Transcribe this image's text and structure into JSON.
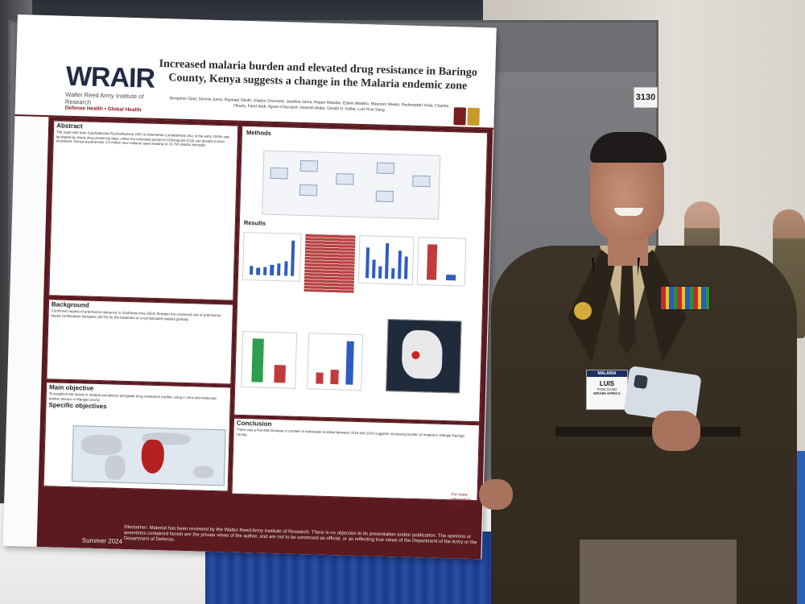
{
  "scene": {
    "booth_number": "3130"
  },
  "poster": {
    "logo": "WRAIR",
    "logo_sub": "Walter Reed Army Institute of Research",
    "logo_tag": "Defense Health  •  Global Health",
    "title": "Increased malaria burden and elevated drug resistance in Baringo County, Kenya suggests a change in the Malaria endemic zone",
    "authors": "Benjamin Opot, Dennis Juma, Raphael Okoth, Gladys Chemwor, Jackline Juma, Risper Maisiba, Edwin Mwakio, Maureen Mwalo, Redemptah Yeda, Charles Okudo, Farid Abdi, Agnes Cheruiyot, Hoseah Akala, Gerald G. Kellar, Luis Pow Sang",
    "sections": {
      "abstract": "Abstract",
      "background": "Background",
      "main_objective": "Main objective",
      "specific_objectives": "Specific objectives",
      "methods": "Methods",
      "results": "Results",
      "conclusion": "Conclusion"
    },
    "abstract_text": "The rapid shift from Sulphadoxine-Pyrimethamine (SP) to Artemether-Lumefantrine (AL) in the early 2000s was facilitated by timely drug sensitivity data, unlike the extended period of Chloroquine (CQ) use despite known resistance. Kenya experiences 3.5 million new malaria cases leading to 10,700 deaths annually.",
    "background_text": "Confirmed reports of artemisinin tolerance in Southeast Asia (SEA) threaten the continued use of artemisinin-based combination therapies (ACTs) for the treatment of uncomplicated malaria globally.",
    "objective_text": "To establish the trends in malaria prevalence alongside drug resistance profiles using in vitro and molecular marker assays in Marigat county",
    "conclusion_text": "There was a five-fold increase in number of individuals enrolled between 2019 and 2024 suggests increasing burden of malaria in Marigat Baringo county.",
    "summer": "Summer 2024",
    "disclaimer": "Disclaimer: Material has been reviewed by the Walter Reed Army Institute of Research. There is no objection to its presentation and/or publication. The opinions or assertions contained herein are the private views of the author, and are not to be construed as official, or as reflecting true views of the Department of the Army or the Department of Defense.",
    "contact": "For more information contact:"
  },
  "badge": {
    "event": "MALARIA",
    "name": "LUIS",
    "surname": "POW SANG",
    "org": "WRAIR-AFRICA"
  },
  "chart_data": [
    {
      "type": "bar",
      "values": [
        10,
        8,
        9,
        12,
        14,
        16,
        40
      ],
      "colors": [
        "#2e5cc2"
      ]
    },
    {
      "type": "bar",
      "values": [
        30,
        18,
        12,
        35,
        10,
        28,
        22
      ],
      "colors": [
        "#2e5cc2"
      ]
    },
    {
      "type": "bar",
      "values": [
        32,
        5
      ],
      "colors": [
        "#c23b3b",
        "#2e5cc2"
      ]
    },
    {
      "type": "bar",
      "values": [
        30,
        12
      ],
      "colors": [
        "#2e9e4e",
        "#c23b3b"
      ]
    },
    {
      "type": "bar",
      "values": [
        8,
        10,
        30
      ],
      "colors": [
        "#c23b3b",
        "#c23b3b",
        "#2e5cc2"
      ]
    }
  ]
}
